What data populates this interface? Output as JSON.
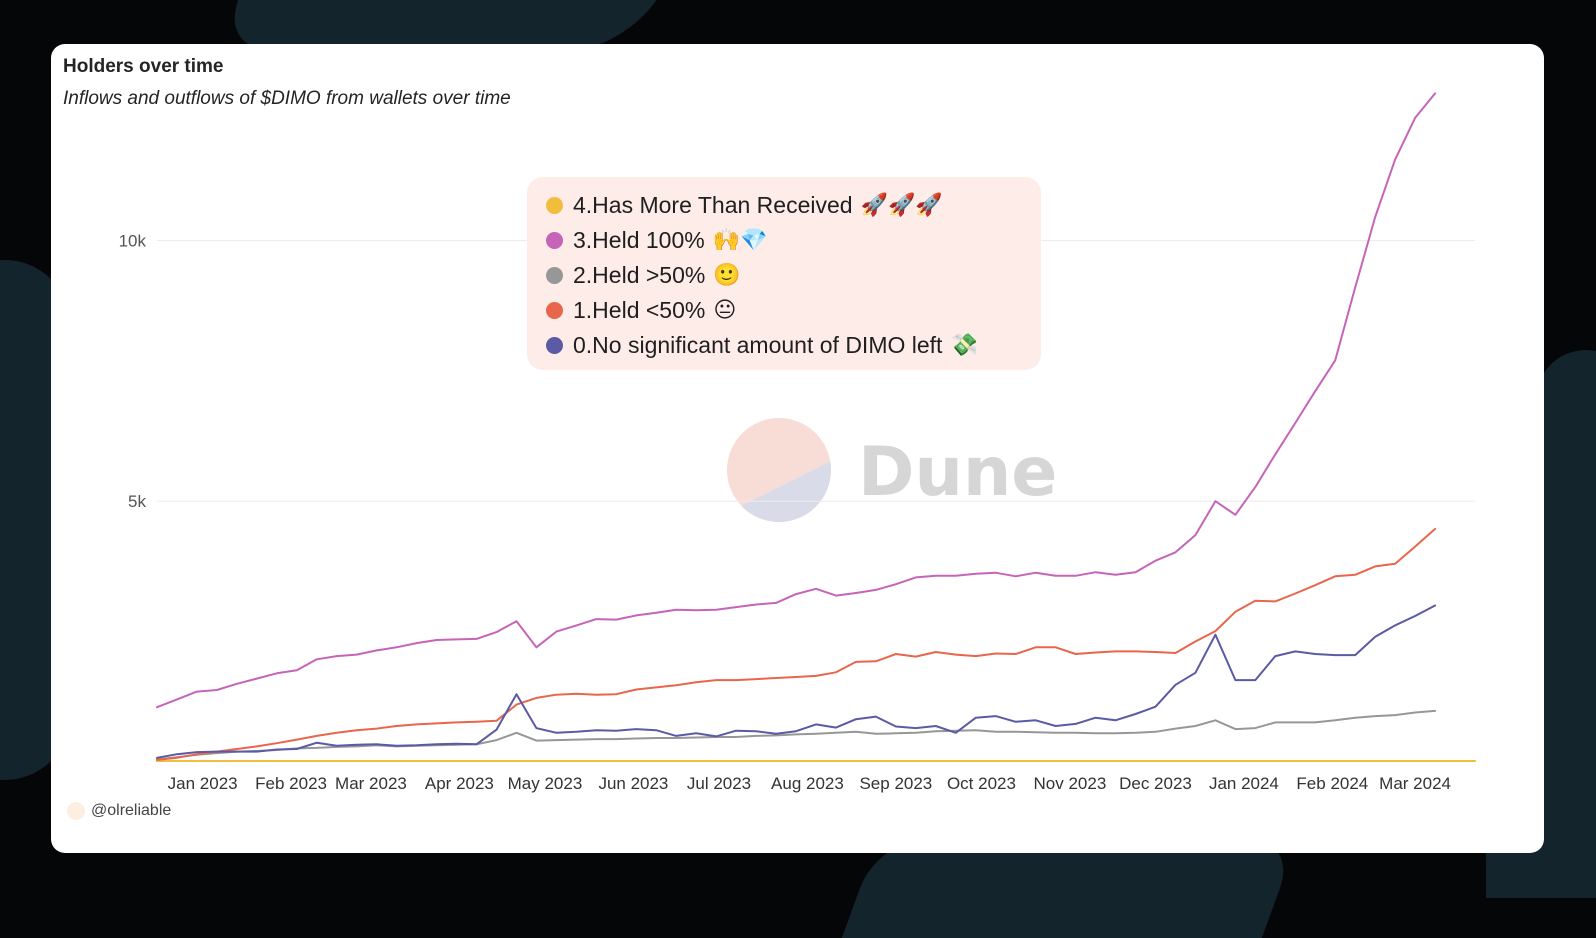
{
  "card": {
    "title": "Holders over time",
    "subtitle": "Inflows and outflows of $DIMO from wallets over time",
    "credit": "@olreliable",
    "watermark": "Dune"
  },
  "legend": {
    "items": [
      {
        "label": "4.Has More Than Received",
        "emoji": "🚀🚀🚀",
        "color": "#f0bd3c"
      },
      {
        "label": "3.Held 100%",
        "emoji": "🙌💎",
        "color": "#c564b9"
      },
      {
        "label": "2.Held >50%",
        "emoji": "🙂",
        "color": "#979797"
      },
      {
        "label": "1.Held <50%",
        "emoji": "😐",
        "color": "#e8664b"
      },
      {
        "label": "0.No significant amount of DIMO left",
        "emoji": "💸",
        "color": "#5a5aa5"
      }
    ]
  },
  "chart_data": {
    "type": "line",
    "x_start": "2022-12-16",
    "x_step_days": 7,
    "x_ticks": [
      "Jan 2023",
      "Feb 2023",
      "Mar 2023",
      "Apr 2023",
      "May 2023",
      "Jun 2023",
      "Jul 2023",
      "Aug 2023",
      "Sep 2023",
      "Oct 2023",
      "Nov 2023",
      "Dec 2023",
      "Jan 2024",
      "Feb 2024",
      "Mar 2024"
    ],
    "y_ticks": [
      "5k",
      "10k"
    ],
    "y_tick_values": [
      5000,
      10000
    ],
    "ylim": [
      0,
      13000
    ],
    "grid": true,
    "legend_position": "top-center",
    "series": [
      {
        "name": "4.Has More Than Received",
        "color": "#f0bd3c",
        "values": [
          20,
          20,
          20,
          20,
          20,
          20,
          20,
          20,
          20,
          20,
          20,
          20,
          20,
          20,
          20,
          20,
          20,
          20,
          20,
          20,
          20,
          20,
          20,
          20,
          20,
          20,
          20,
          20,
          20,
          20,
          20,
          20,
          20,
          20,
          20,
          20,
          20,
          20,
          20,
          20,
          20,
          20,
          20,
          20,
          20,
          20,
          20,
          20,
          20,
          20,
          20,
          20,
          20,
          20,
          20,
          20,
          20,
          20,
          20,
          20,
          20,
          20,
          20,
          20,
          20,
          20,
          20
        ]
      },
      {
        "name": "3.Held 100%",
        "color": "#c564b9",
        "values": [
          1050,
          1200,
          1350,
          1380,
          1500,
          1600,
          1700,
          1760,
          1970,
          2030,
          2060,
          2140,
          2200,
          2280,
          2340,
          2350,
          2360,
          2490,
          2700,
          2200,
          2500,
          2620,
          2740,
          2730,
          2810,
          2860,
          2920,
          2910,
          2920,
          2970,
          3020,
          3050,
          3220,
          3320,
          3190,
          3240,
          3300,
          3410,
          3540,
          3570,
          3570,
          3610,
          3630,
          3560,
          3630,
          3570,
          3570,
          3640,
          3590,
          3640,
          3860,
          4020,
          4350,
          5000,
          4740,
          5270,
          5900,
          6500,
          7110,
          7700,
          9100,
          10450,
          11550,
          12350,
          12820
        ]
      },
      {
        "name": "2.Held >50%",
        "color": "#979797",
        "values": [
          50,
          90,
          140,
          170,
          200,
          210,
          230,
          260,
          270,
          290,
          300,
          320,
          300,
          310,
          320,
          330,
          340,
          420,
          560,
          410,
          420,
          430,
          440,
          440,
          450,
          460,
          460,
          470,
          480,
          480,
          500,
          510,
          530,
          540,
          560,
          580,
          540,
          550,
          560,
          590,
          600,
          610,
          580,
          580,
          570,
          560,
          560,
          550,
          550,
          560,
          580,
          640,
          690,
          800,
          630,
          650,
          760,
          760,
          760,
          800,
          850,
          880,
          900,
          950,
          980
        ]
      },
      {
        "name": "1.Held <50%",
        "color": "#e8664b",
        "values": [
          40,
          80,
          150,
          200,
          250,
          300,
          360,
          430,
          500,
          560,
          610,
          640,
          690,
          720,
          740,
          760,
          770,
          790,
          1100,
          1230,
          1290,
          1310,
          1290,
          1300,
          1390,
          1430,
          1470,
          1530,
          1570,
          1570,
          1590,
          1610,
          1630,
          1650,
          1720,
          1920,
          1930,
          2070,
          2020,
          2110,
          2060,
          2030,
          2080,
          2070,
          2200,
          2200,
          2070,
          2100,
          2120,
          2120,
          2110,
          2090,
          2310,
          2510,
          2880,
          3090,
          3080,
          3230,
          3390,
          3560,
          3590,
          3750,
          3800,
          4130,
          4470
        ]
      },
      {
        "name": "0.No significant amount of DIMO left",
        "color": "#5a5aa5",
        "values": [
          80,
          150,
          190,
          200,
          200,
          200,
          240,
          250,
          370,
          310,
          330,
          340,
          310,
          320,
          340,
          350,
          340,
          620,
          1300,
          650,
          560,
          580,
          610,
          600,
          630,
          610,
          500,
          550,
          490,
          600,
          590,
          540,
          590,
          720,
          660,
          820,
          870,
          680,
          650,
          690,
          560,
          850,
          880,
          770,
          800,
          690,
          730,
          850,
          800,
          920,
          1060,
          1480,
          1710,
          2440,
          1570,
          1570,
          2030,
          2120,
          2070,
          2050,
          2050,
          2400,
          2620,
          2800,
          3000
        ]
      }
    ]
  }
}
